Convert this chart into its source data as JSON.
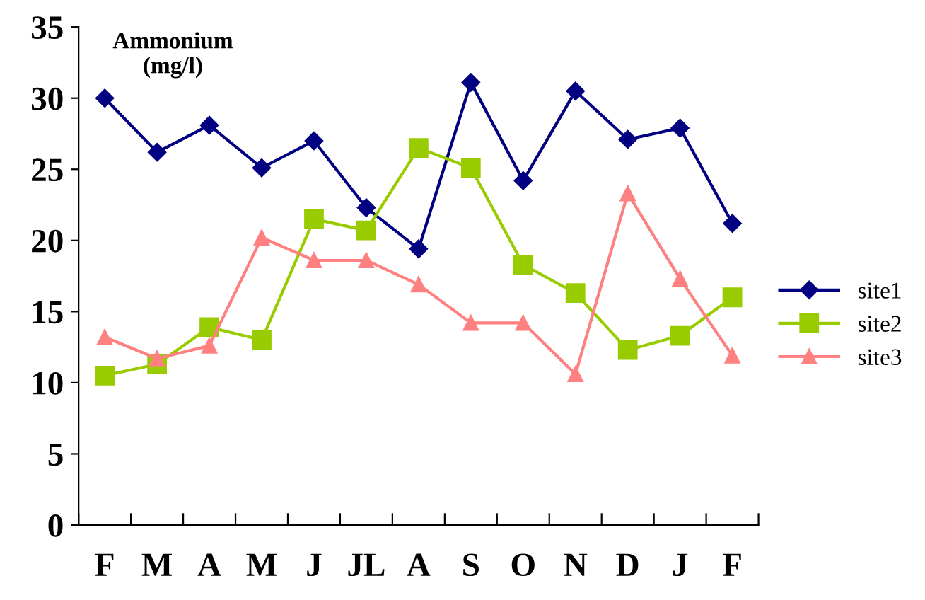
{
  "chart_data": {
    "type": "line",
    "title": "Ammonium\n(mg/l)",
    "categories": [
      "F",
      "M",
      "A",
      "M",
      "J",
      "JL",
      "A",
      "S",
      "O",
      "N",
      "D",
      "J",
      "F"
    ],
    "series": [
      {
        "name": "site1",
        "color": "#000080",
        "marker": "diamond",
        "values": [
          30,
          26.2,
          28.1,
          25.1,
          27.0,
          22.3,
          19.4,
          31.1,
          24.2,
          30.5,
          27.1,
          27.9,
          21.2
        ]
      },
      {
        "name": "site2",
        "color": "#99cc00",
        "marker": "square",
        "values": [
          10.5,
          11.3,
          13.9,
          13.0,
          21.5,
          20.7,
          26.5,
          25.1,
          18.3,
          16.3,
          12.3,
          13.3,
          16.0
        ]
      },
      {
        "name": "site3",
        "color": "#ff8080",
        "marker": "triangle",
        "values": [
          13.2,
          11.7,
          12.6,
          20.2,
          18.6,
          18.6,
          16.9,
          14.2,
          14.2,
          10.6,
          23.3,
          17.3,
          11.9
        ]
      }
    ],
    "ylim": [
      0,
      35
    ],
    "yticks": [
      0,
      5,
      10,
      15,
      20,
      25,
      30,
      35
    ],
    "grid": false,
    "legend": "right",
    "line_style": "solid"
  }
}
